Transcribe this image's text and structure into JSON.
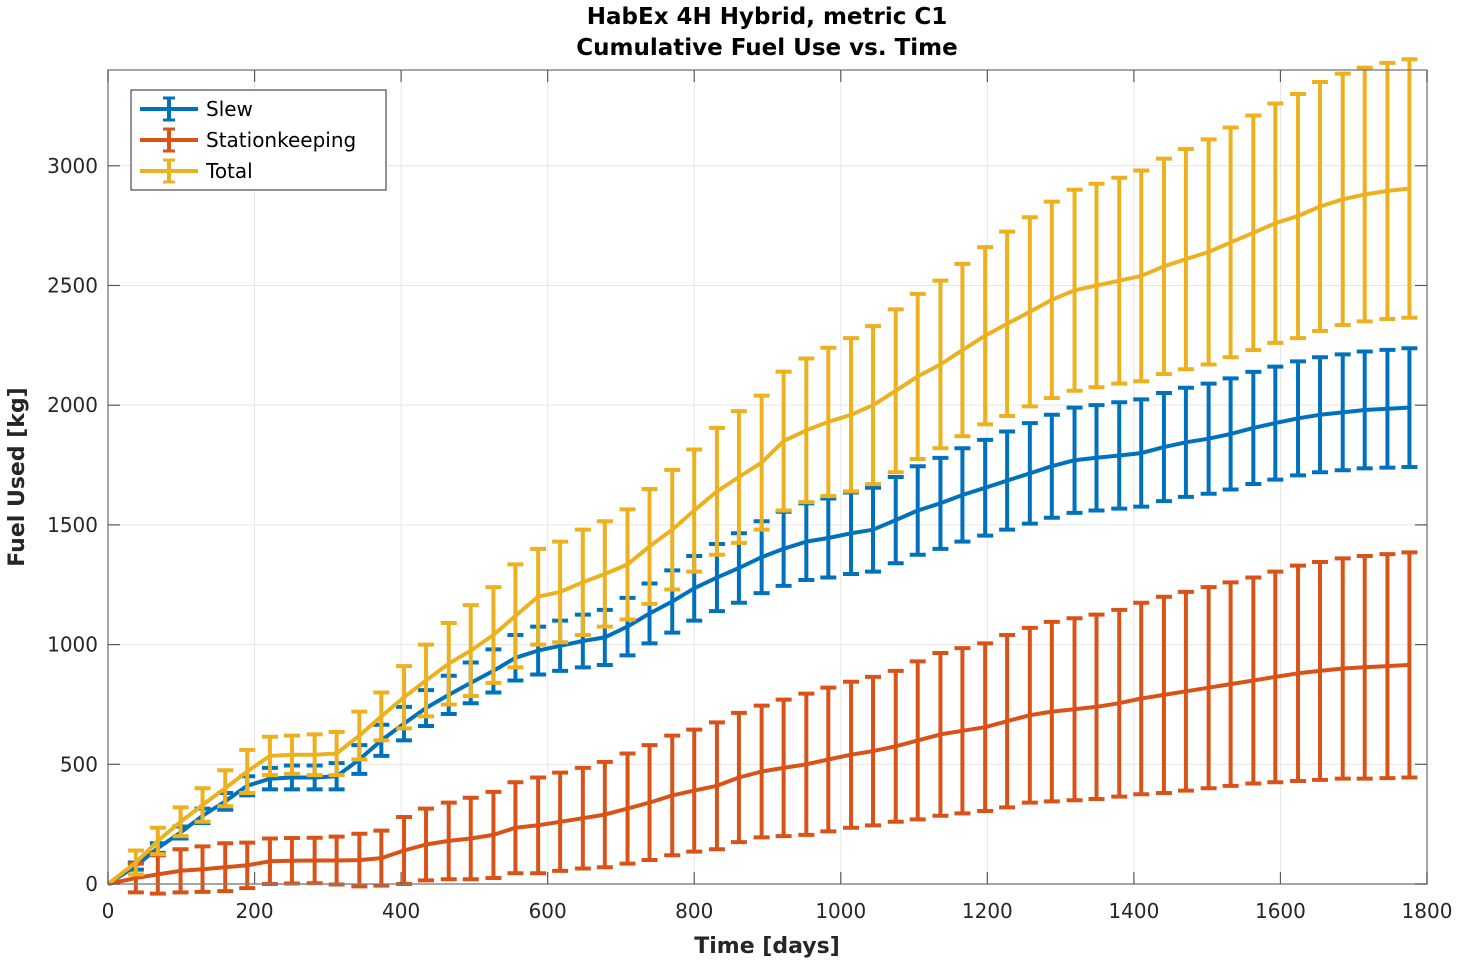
{
  "chart_data": {
    "type": "line",
    "subtype": "errorbar",
    "title": [
      "HabEx 4H Hybrid, metric C1",
      "Cumulative Fuel Use vs. Time"
    ],
    "xlabel": "Time [days]",
    "ylabel": "Fuel Used [kg]",
    "xlim": [
      0,
      1800
    ],
    "ylim": [
      0,
      3400
    ],
    "xticks": [
      0,
      200,
      400,
      600,
      800,
      1000,
      1200,
      1400,
      1600,
      1800
    ],
    "yticks": [
      0,
      500,
      1000,
      1500,
      2000,
      2500,
      3000
    ],
    "grid": true,
    "legend_position": "top-left",
    "x": [
      0,
      38,
      68,
      99,
      129,
      160,
      190,
      221,
      251,
      282,
      312,
      343,
      373,
      404,
      434,
      465,
      495,
      526,
      556,
      587,
      617,
      648,
      678,
      709,
      739,
      770,
      800,
      831,
      861,
      892,
      922,
      953,
      983,
      1014,
      1044,
      1075,
      1105,
      1136,
      1166,
      1197,
      1227,
      1258,
      1288,
      1319,
      1349,
      1380,
      1410,
      1441,
      1471,
      1502,
      1532,
      1563,
      1593,
      1624,
      1654,
      1685,
      1715,
      1746,
      1776
    ],
    "series": [
      {
        "name": "Slew",
        "color": "#0072BD",
        "values": [
          0,
          75,
          150,
          215,
          285,
          345,
          410,
          440,
          445,
          445,
          450,
          520,
          600,
          670,
          735,
          790,
          840,
          890,
          945,
          975,
          995,
          1015,
          1030,
          1075,
          1130,
          1180,
          1235,
          1280,
          1320,
          1365,
          1400,
          1430,
          1445,
          1465,
          1480,
          1520,
          1560,
          1590,
          1625,
          1655,
          1685,
          1715,
          1745,
          1770,
          1780,
          1790,
          1800,
          1825,
          1845,
          1860,
          1880,
          1905,
          1925,
          1945,
          1960,
          1970,
          1980,
          1985,
          1990
        ],
        "errors": [
          0,
          15,
          20,
          25,
          30,
          35,
          40,
          45,
          50,
          50,
          55,
          60,
          65,
          70,
          75,
          80,
          85,
          90,
          95,
          100,
          105,
          110,
          115,
          120,
          125,
          130,
          135,
          140,
          145,
          150,
          155,
          160,
          165,
          170,
          175,
          180,
          185,
          190,
          195,
          200,
          205,
          210,
          215,
          220,
          220,
          222,
          224,
          226,
          228,
          230,
          232,
          234,
          236,
          238,
          240,
          242,
          244,
          246,
          248
        ]
      },
      {
        "name": "Stationkeeping",
        "color": "#D95319",
        "values": [
          0,
          25,
          40,
          55,
          62,
          70,
          78,
          95,
          97,
          98,
          98,
          100,
          108,
          140,
          165,
          180,
          190,
          205,
          235,
          245,
          260,
          275,
          290,
          315,
          340,
          370,
          390,
          410,
          445,
          470,
          485,
          500,
          520,
          540,
          555,
          575,
          600,
          625,
          640,
          655,
          680,
          705,
          720,
          730,
          740,
          755,
          775,
          790,
          805,
          820,
          835,
          850,
          865,
          880,
          890,
          900,
          905,
          910,
          915
        ],
        "errors": [
          0,
          60,
          80,
          90,
          95,
          100,
          95,
          95,
          95,
          95,
          100,
          110,
          115,
          140,
          150,
          160,
          170,
          180,
          190,
          200,
          205,
          210,
          220,
          230,
          240,
          250,
          255,
          265,
          270,
          275,
          285,
          295,
          300,
          305,
          310,
          315,
          330,
          340,
          345,
          350,
          360,
          365,
          375,
          380,
          385,
          390,
          400,
          410,
          415,
          420,
          425,
          430,
          440,
          450,
          455,
          460,
          465,
          468,
          470
        ]
      },
      {
        "name": "Total",
        "color": "#EDB120",
        "values": [
          0,
          90,
          180,
          260,
          330,
          400,
          470,
          535,
          540,
          540,
          545,
          620,
          700,
          780,
          850,
          920,
          975,
          1040,
          1120,
          1200,
          1220,
          1260,
          1295,
          1335,
          1410,
          1480,
          1560,
          1640,
          1700,
          1760,
          1850,
          1895,
          1930,
          1960,
          2000,
          2060,
          2120,
          2170,
          2230,
          2290,
          2340,
          2390,
          2440,
          2480,
          2500,
          2520,
          2540,
          2580,
          2610,
          2640,
          2680,
          2720,
          2760,
          2790,
          2830,
          2860,
          2880,
          2895,
          2905
        ],
        "errors": [
          0,
          50,
          55,
          60,
          70,
          75,
          90,
          80,
          80,
          85,
          90,
          100,
          100,
          130,
          150,
          170,
          190,
          200,
          215,
          200,
          210,
          220,
          220,
          230,
          240,
          250,
          255,
          265,
          275,
          280,
          290,
          300,
          310,
          320,
          330,
          340,
          345,
          350,
          360,
          370,
          385,
          395,
          410,
          420,
          425,
          430,
          440,
          450,
          460,
          470,
          480,
          490,
          500,
          510,
          520,
          525,
          530,
          535,
          540
        ]
      }
    ]
  }
}
